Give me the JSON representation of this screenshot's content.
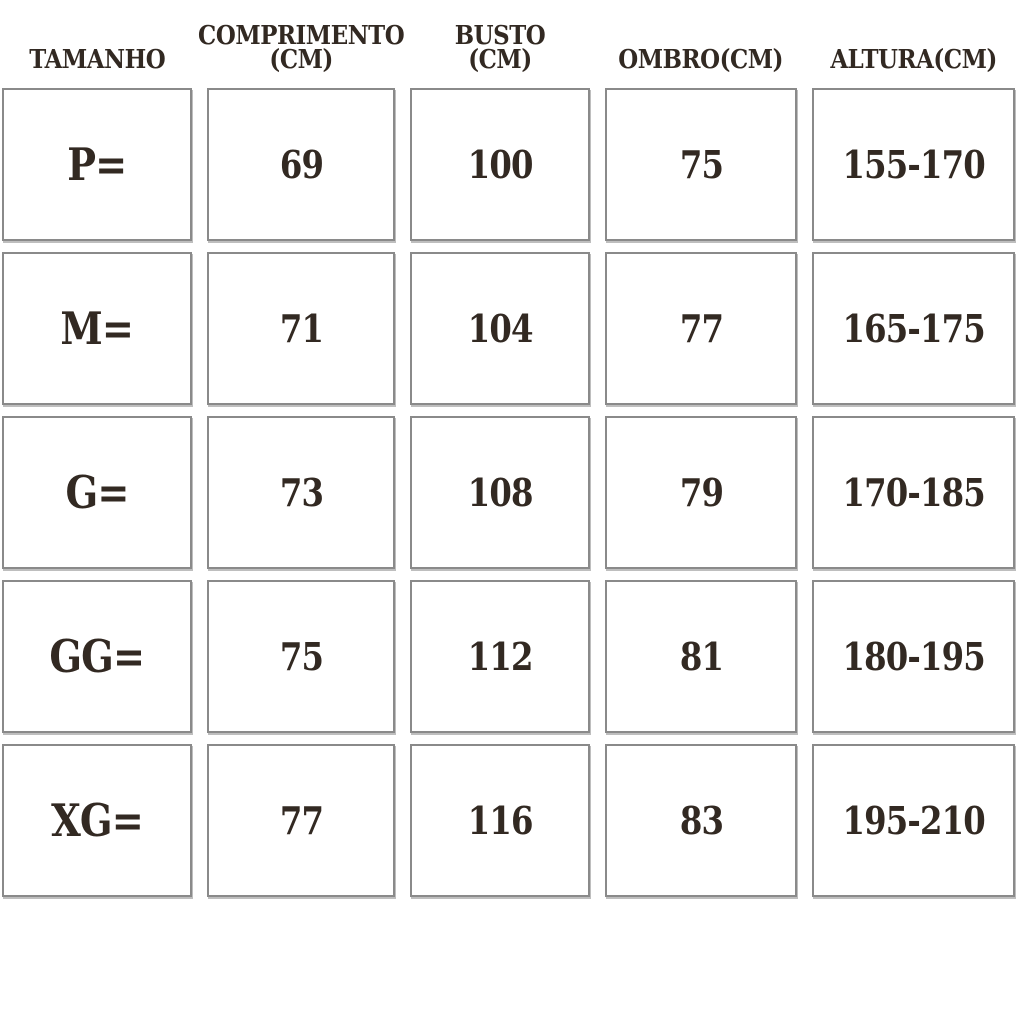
{
  "page": {
    "background": "#ffffff"
  },
  "colors": {
    "text": "#322922",
    "cell_border": "#8a8a8a",
    "cell_background": "#ffffff"
  },
  "size_chart": {
    "headers": [
      {
        "id": "tamanho",
        "label": "TAMANHO"
      },
      {
        "id": "comprimento",
        "label": "COMPRIMENTO\n(CM)"
      },
      {
        "id": "busto",
        "label": "BUSTO (CM)"
      },
      {
        "id": "ombro",
        "label": "OMBRO(CM)"
      },
      {
        "id": "altura",
        "label": "ALTURA(CM)"
      }
    ],
    "rows": [
      {
        "tamanho": "P=",
        "comprimento": "69",
        "busto": "100",
        "ombro": "75",
        "altura": "155-170"
      },
      {
        "tamanho": "M=",
        "comprimento": "71",
        "busto": "104",
        "ombro": "77",
        "altura": "165-175"
      },
      {
        "tamanho": "G=",
        "comprimento": "73",
        "busto": "108",
        "ombro": "79",
        "altura": "170-185"
      },
      {
        "tamanho": "GG=",
        "comprimento": "75",
        "busto": "112",
        "ombro": "81",
        "altura": "180-195"
      },
      {
        "tamanho": "XG=",
        "comprimento": "77",
        "busto": "116",
        "ombro": "83",
        "altura": "195-210"
      }
    ]
  },
  "chart_data": {
    "type": "table",
    "title": "Size chart (clothing measurements, Portuguese)",
    "columns": [
      "TAMANHO",
      "COMPRIMENTO (CM)",
      "BUSTO (CM)",
      "OMBRO(CM)",
      "ALTURA(CM)"
    ],
    "rows": [
      [
        "P=",
        69,
        100,
        75,
        "155-170"
      ],
      [
        "M=",
        71,
        104,
        77,
        "165-175"
      ],
      [
        "G=",
        73,
        108,
        79,
        "170-185"
      ],
      [
        "GG=",
        75,
        112,
        81,
        "180-195"
      ],
      [
        "XG=",
        77,
        116,
        83,
        "195-210"
      ]
    ]
  }
}
